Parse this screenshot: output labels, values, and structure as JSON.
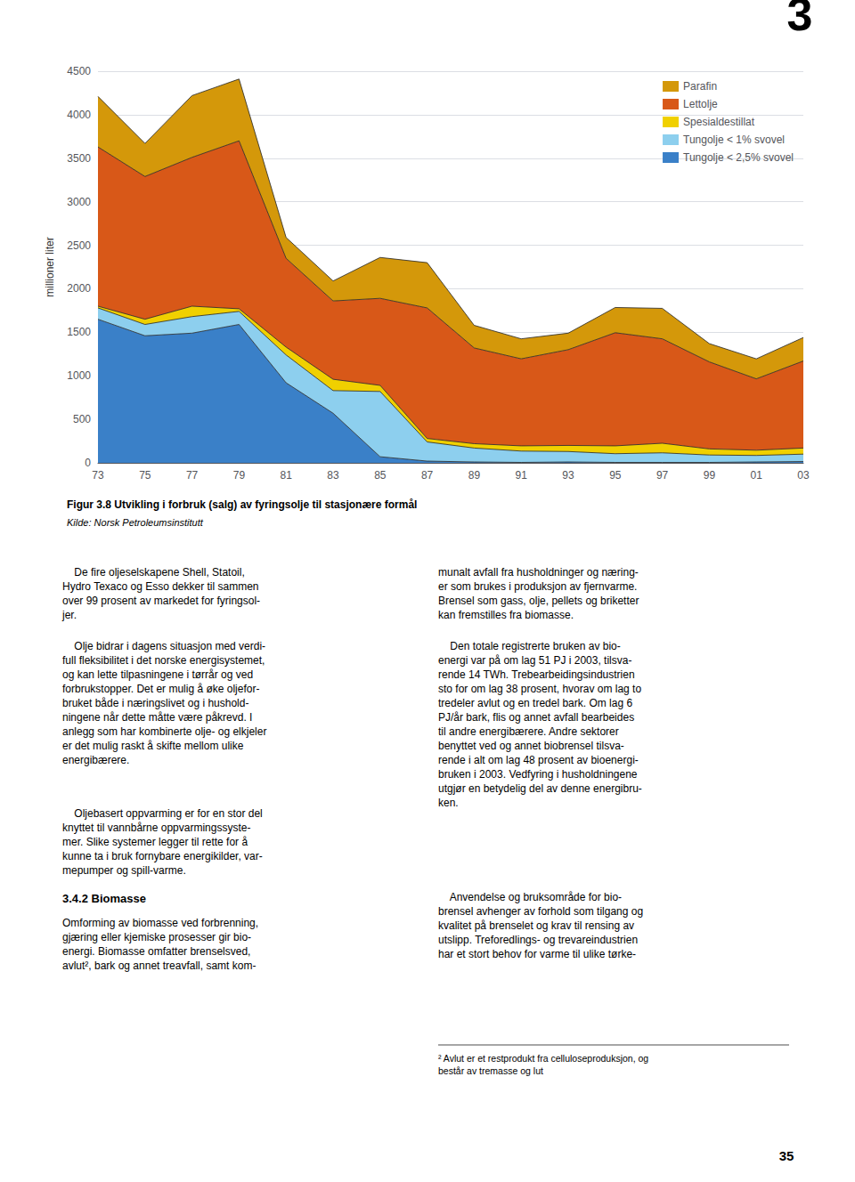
{
  "chart_data": {
    "type": "area",
    "title": "Figur 3.8 Utvikling i forbruk (salg) av fyringsolje til stasjonære formål",
    "subtitle": "Kilde: Norsk Petroleumsinstitutt",
    "ylabel": "millioner liter",
    "categories": [
      "73",
      "75",
      "77",
      "79",
      "81",
      "83",
      "85",
      "87",
      "89",
      "91",
      "93",
      "95",
      "97",
      "99",
      "01",
      "03"
    ],
    "series": [
      {
        "name": "Tungolje < 2,5% svovel",
        "color": "#3a80c8",
        "values": [
          1650,
          1460,
          1490,
          1590,
          920,
          570,
          70,
          20,
          10,
          5,
          10,
          5,
          5,
          5,
          10,
          15
        ]
      },
      {
        "name": "Tungolje < 1% svovel",
        "color": "#8dcfee",
        "values": [
          130,
          130,
          190,
          150,
          320,
          260,
          750,
          220,
          160,
          130,
          120,
          100,
          110,
          85,
          75,
          85
        ]
      },
      {
        "name": "Spesialdestillat",
        "color": "#f0d000",
        "values": [
          20,
          60,
          120,
          30,
          90,
          130,
          70,
          40,
          50,
          60,
          70,
          90,
          110,
          70,
          60,
          70
        ]
      },
      {
        "name": "Lettolje",
        "color": "#d85818",
        "values": [
          1830,
          1640,
          1710,
          1930,
          1020,
          900,
          1000,
          1500,
          1100,
          1000,
          1100,
          1300,
          1200,
          1000,
          820,
          1000
        ]
      },
      {
        "name": "Parafin",
        "color": "#d4980a",
        "values": [
          580,
          380,
          710,
          710,
          240,
          230,
          470,
          520,
          260,
          230,
          190,
          290,
          350,
          210,
          230,
          270
        ]
      }
    ],
    "stacked": true,
    "ylim": [
      0,
      4500
    ],
    "yticks": [
      0,
      500,
      1000,
      1500,
      2000,
      2500,
      3000,
      3500,
      4000,
      4500
    ],
    "grid": true,
    "legend": "upper right",
    "annotations": [
      "3",
      "35",
      "    De fire oljeselskapene Shell, Statoil,\nHydro Texaco og Esso dekker til sammen\nover 99 prosent av markedet for fyringsol-\njer.",
      "    Olje bidrar i dagens situasjon med verdi-\nfull fleksibilitet i det norske energisystemet,\nog kan lette tilpasningene i tørrår og ved\nforbrukstopper. Det er mulig å øke oljefor-\nbruket både i næringslivet og i hushold-\nningene når dette måtte være påkrevd. I\nanlegg som har kombinerte olje- og elkjeler\ner det mulig raskt å skifte mellom ulike\nenergibærere.",
      "    Oljebasert oppvarming er for en stor del\nknyttet til vannbårne oppvarmingssyste-\nmer. Slike systemer legger til rette for å\nkunne ta i bruk fornybare energikilder, var-\nmepumper og spill-varme.",
      "3.4.2 Biomasse",
      "Omforming av biomasse ved forbrenning,\ngjæring eller kjemiske prosesser gir bio-\nenergi. Biomasse omfatter brenselsved,\navlut², bark og annet treavfall, samt kom-",
      "munalt avfall fra husholdninger og næring-\ner som brukes i produksjon av fjernvarme.\nBrensel som gass, olje, pellets og briketter\nkan fremstilles fra biomasse.",
      "    Den totale registrerte bruken av bio-\nenergi var på om lag 51 PJ i 2003, tilsva-\nrende 14 TWh. Trebearbeidingsindustrien\nsto for om lag 38 prosent, hvorav om lag to\ntredeler avlut og en tredel bark. Om lag 6\nPJ/år bark, flis og annet avfall bearbeides\ntil andre energibærere. Andre sektorer\nbenyttet ved og annet biobrensel tilsva-\nrende i alt om lag 48 prosent av bioenergi-\nbruken i 2003. Vedfyring i husholdningene\nutgjør en betydelig del av denne energibru-\nken.",
      "    Anvendelse og bruksområde for bio-\nbrensel avhenger av forhold som tilgang og\nkvalitet på brenselet og krav til rensing av\nutslipp. Treforedlings- og trevareindustrien\nhar et stort behov for varme til ulike tørke-",
      "² Avlut er et restprodukt fra celluloseproduksjon, og\nbestår av tremasse og lut"
    ]
  }
}
